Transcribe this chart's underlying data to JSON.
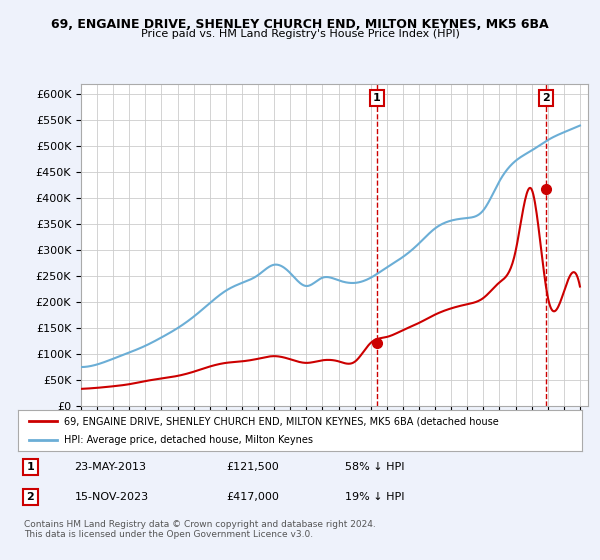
{
  "title1": "69, ENGAINE DRIVE, SHENLEY CHURCH END, MILTON KEYNES, MK5 6BA",
  "title2": "Price paid vs. HM Land Registry's House Price Index (HPI)",
  "xlim_start": 1995.0,
  "xlim_end": 2026.5,
  "ylim": [
    0,
    620000
  ],
  "yticks": [
    0,
    50000,
    100000,
    150000,
    200000,
    250000,
    300000,
    350000,
    400000,
    450000,
    500000,
    550000,
    600000
  ],
  "ytick_labels": [
    "£0",
    "£50K",
    "£100K",
    "£150K",
    "£200K",
    "£250K",
    "£300K",
    "£350K",
    "£400K",
    "£450K",
    "£500K",
    "£550K",
    "£600K"
  ],
  "hpi_color": "#6baed6",
  "price_color": "#cc0000",
  "sale1_x": 2013.39,
  "sale1_y": 121500,
  "sale2_x": 2023.88,
  "sale2_y": 417000,
  "vline_color": "#cc0000",
  "legend_label1": "69, ENGAINE DRIVE, SHENLEY CHURCH END, MILTON KEYNES, MK5 6BA (detached house",
  "legend_label2": "HPI: Average price, detached house, Milton Keynes",
  "note1_num": "1",
  "note1_date": "23-MAY-2013",
  "note1_price": "£121,500",
  "note1_hpi": "58% ↓ HPI",
  "note2_num": "2",
  "note2_date": "15-NOV-2023",
  "note2_price": "£417,000",
  "note2_hpi": "19% ↓ HPI",
  "footer": "Contains HM Land Registry data © Crown copyright and database right 2024.\nThis data is licensed under the Open Government Licence v3.0.",
  "bg_color": "#eef2fb",
  "plot_bg": "#ffffff",
  "grid_color": "#cccccc",
  "hpi_years": [
    1995,
    1996,
    1997,
    1998,
    1999,
    2000,
    2001,
    2002,
    2003,
    2004,
    2005,
    2006,
    2007,
    2008,
    2009,
    2010,
    2011,
    2012,
    2013,
    2014,
    2015,
    2016,
    2017,
    2018,
    2019,
    2020,
    2021,
    2022,
    2023,
    2024,
    2025,
    2026
  ],
  "hpi_vals": [
    75000,
    80000,
    91000,
    103000,
    116000,
    132000,
    150000,
    172000,
    198000,
    222000,
    237000,
    252000,
    272000,
    256000,
    231000,
    247000,
    242000,
    237000,
    247000,
    267000,
    287000,
    313000,
    342000,
    357000,
    362000,
    377000,
    433000,
    472000,
    492000,
    512000,
    527000,
    540000
  ],
  "price_years": [
    1995,
    1996,
    1997,
    1998,
    1999,
    2000,
    2001,
    2002,
    2003,
    2004,
    2005,
    2006,
    2007,
    2008,
    2009,
    2010,
    2011,
    2012,
    2013,
    2014,
    2015,
    2016,
    2017,
    2018,
    2019,
    2020,
    2021,
    2022,
    2023,
    2024,
    2025,
    2026
  ],
  "price_vals": [
    33000,
    35000,
    38000,
    42000,
    48000,
    53000,
    58000,
    66000,
    76000,
    83000,
    86000,
    91000,
    96000,
    90000,
    83000,
    88000,
    86000,
    85000,
    121500,
    133000,
    146000,
    160000,
    176000,
    188000,
    196000,
    208000,
    238000,
    298000,
    417000,
    210000,
    220000,
    230000
  ]
}
